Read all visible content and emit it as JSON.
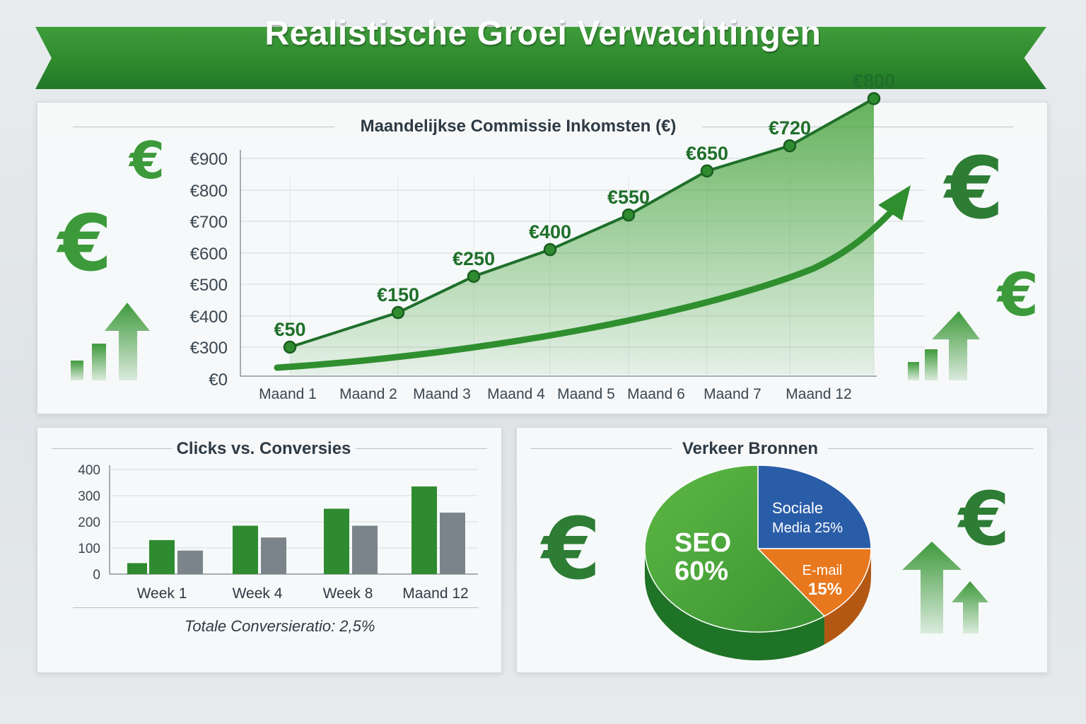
{
  "page": {
    "title": "Realistische Groei Verwachtingen"
  },
  "colors": {
    "green": "#2e8b2f",
    "dark_green": "#1f6f2a",
    "light_green": "#4aa540",
    "gray": "#7b848b",
    "blue": "#2a5da8",
    "orange": "#e8781e"
  },
  "icons": [
    "euro-icon",
    "up-arrow-icon",
    "growth-arrow-icon"
  ],
  "chart_data": [
    {
      "type": "line",
      "title": "Maandelijkse Commissie Inkomsten (€)",
      "categories": [
        "Maand 1",
        "Maand 2",
        "Maand 3",
        "Maand 4",
        "Maand 5",
        "Maand 6",
        "Maand 7",
        "Maand 12"
      ],
      "values": [
        50,
        150,
        250,
        400,
        550,
        650,
        720,
        800
      ],
      "data_labels": [
        "€50",
        "€150",
        "€250",
        "€400",
        "€550",
        "€650",
        "€720",
        "€800"
      ],
      "plotted_levels": [
        300,
        410,
        525,
        610,
        720,
        860,
        940,
        1090
      ],
      "y_ticks": [
        "€0",
        "€300",
        "€400",
        "€500",
        "€600",
        "€700",
        "€800",
        "€900"
      ],
      "xlabel": "",
      "ylabel": "",
      "trend": "up"
    },
    {
      "type": "bar",
      "title": "Clicks vs. Conversies",
      "categories": [
        "Week 1",
        "Week 4",
        "Week 8",
        "Maand 12"
      ],
      "series": [
        {
          "name": "Clicks",
          "values": [
            130,
            185,
            250,
            335
          ]
        },
        {
          "name": "Conversies",
          "values": [
            90,
            140,
            185,
            235
          ]
        }
      ],
      "extra_bar": {
        "category": "Week 1",
        "value": 42
      },
      "y_ticks": [
        "0",
        "100",
        "200",
        "300",
        "400"
      ],
      "ylim": [
        0,
        400
      ],
      "footnote": "Totale Conversieratio: 2,5%"
    },
    {
      "type": "pie",
      "title": "Verkeer Bronnen",
      "slices": [
        {
          "name": "SEO",
          "value": 60,
          "label_top": "SEO",
          "label_bottom": "60%"
        },
        {
          "name": "Sociale Media",
          "value": 25,
          "label_top": "Sociale",
          "label_bottom": "Media 25%"
        },
        {
          "name": "E-mail",
          "value": 15,
          "label_top": "E-mail",
          "label_bottom": "15%"
        }
      ]
    }
  ]
}
